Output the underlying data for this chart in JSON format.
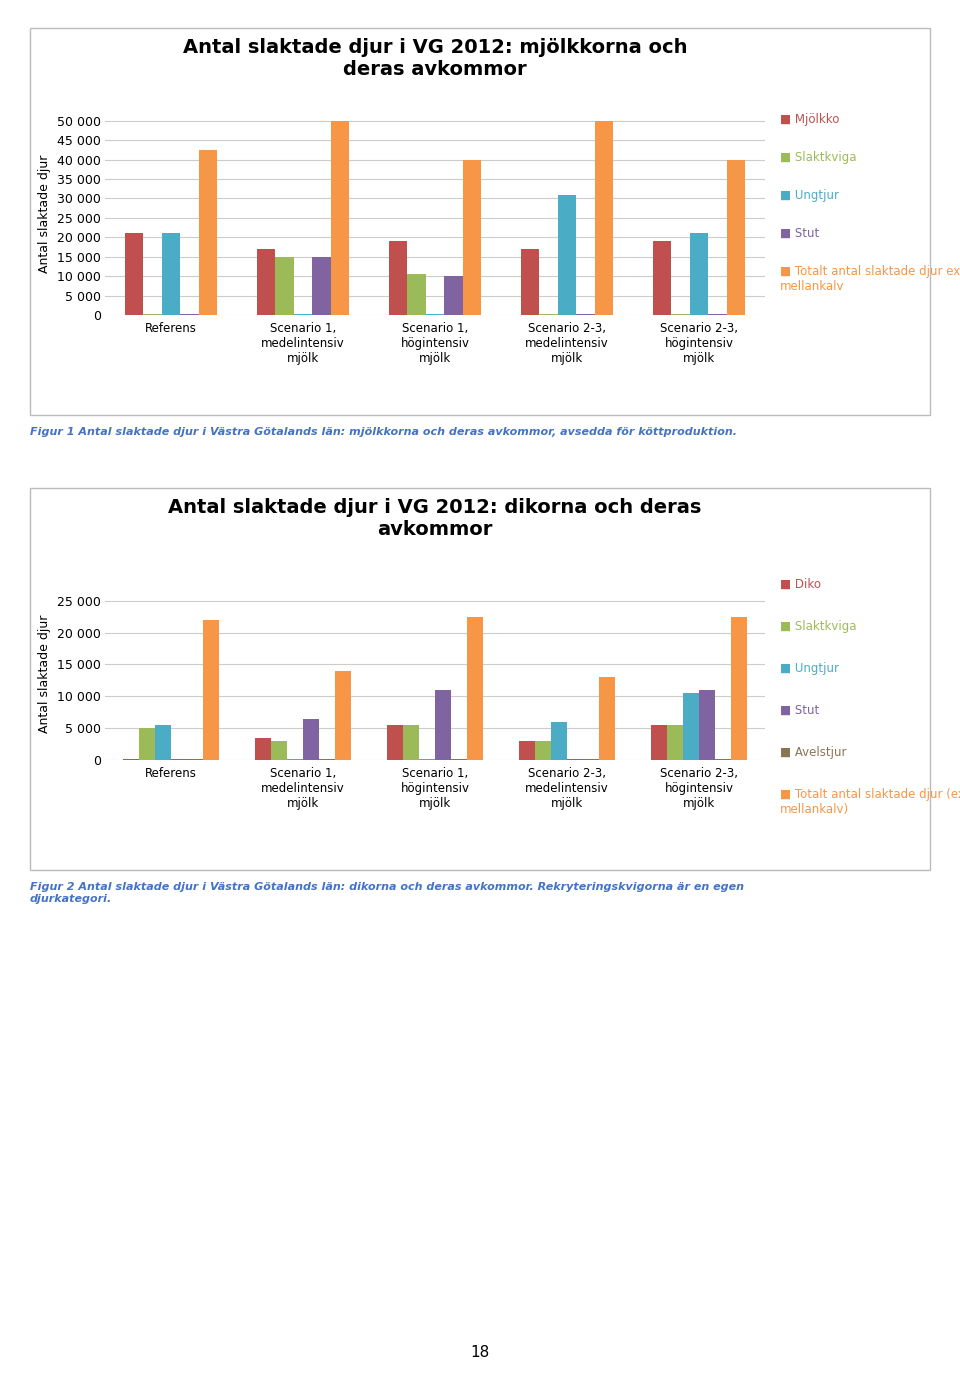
{
  "chart1": {
    "title": "Antal slaktade djur i VG 2012: mjölkkorna och\nderas avkommor",
    "ylabel": "Antal slaktade djur",
    "categories": [
      "Referens",
      "Scenario 1,\nmedelintensiv\nmjölk",
      "Scenario 1,\nhögintensiv\nmjölk",
      "Scenario 2-3,\nmedelintensiv\nmjölk",
      "Scenario 2-3,\nhögintensiv\nmjölk"
    ],
    "series": {
      "Mjölkko": [
        21000,
        17000,
        19000,
        17000,
        19000
      ],
      "Slaktkviga": [
        200,
        15000,
        10500,
        200,
        200
      ],
      "Ungtjur": [
        21000,
        200,
        200,
        31000,
        21000
      ],
      "Stut": [
        200,
        15000,
        10000,
        200,
        200
      ],
      "Totalt antal slaktade djur exkl\nmellankalv": [
        42500,
        50000,
        40000,
        50000,
        40000
      ]
    },
    "colors": {
      "Mjölkko": "#C0504D",
      "Slaktkviga": "#9BBB59",
      "Ungtjur": "#4BACC6",
      "Stut": "#8064A2",
      "Totalt antal slaktade djur exkl\nmellankalv": "#F79646"
    },
    "ylim": [
      0,
      52000
    ],
    "yticks": [
      0,
      5000,
      10000,
      15000,
      20000,
      25000,
      30000,
      35000,
      40000,
      45000,
      50000
    ],
    "ytick_labels": [
      "0",
      "5 000",
      "10 000",
      "15 000",
      "20 000",
      "25 000",
      "30 000",
      "35 000",
      "40 000",
      "45 000",
      "50 000"
    ]
  },
  "chart2": {
    "title": "Antal slaktade djur i VG 2012: dikorna och deras\navkommor",
    "ylabel": "Antal slaktade djur",
    "categories": [
      "Referens",
      "Scenario 1,\nmedelintensiv\nmjölk",
      "Scenario 1,\nhögintensiv\nmjölk",
      "Scenario 2-3,\nmedelintensiv\nmjölk",
      "Scenario 2-3,\nhögintensiv\nmjölk"
    ],
    "series": {
      "Diko": [
        200,
        3500,
        5500,
        3000,
        5500
      ],
      "Slaktkviga": [
        5000,
        3000,
        5500,
        3000,
        5500
      ],
      "Ungtjur": [
        5500,
        200,
        200,
        6000,
        10500
      ],
      "Stut": [
        200,
        6500,
        11000,
        200,
        11000
      ],
      "Avelstjur": [
        200,
        200,
        200,
        200,
        200
      ],
      "Totalt antal slaktade djur (exkl\nmellankalv)": [
        22000,
        14000,
        22500,
        13000,
        22500
      ]
    },
    "colors": {
      "Diko": "#C0504D",
      "Slaktkviga": "#9BBB59",
      "Ungtjur": "#4BACC6",
      "Stut": "#8064A2",
      "Avelstjur": "#8B7355",
      "Totalt antal slaktade djur (exkl\nmellankalv)": "#F79646"
    },
    "ylim": [
      0,
      27000
    ],
    "yticks": [
      0,
      5000,
      10000,
      15000,
      20000,
      25000
    ],
    "ytick_labels": [
      "0",
      "5 000",
      "10 000",
      "15 000",
      "20 000",
      "25 000"
    ]
  },
  "figcaption1": "Figur 1 Antal slaktade djur i Västra Götalands län: mjölkkorna och deras avkommor, avsedda för köttproduktion.",
  "figcaption2": "Figur 2 Antal slaktade djur i Västra Götalands län: dikorna och deras avkommor. Rekryteringskvigorna är en egen\ndjurkategori.",
  "page_number": "18",
  "background_color": "#FFFFFF",
  "chart_bg": "#FFFFFF",
  "border_color": "#BBBBBB",
  "caption_color": "#4472C4"
}
